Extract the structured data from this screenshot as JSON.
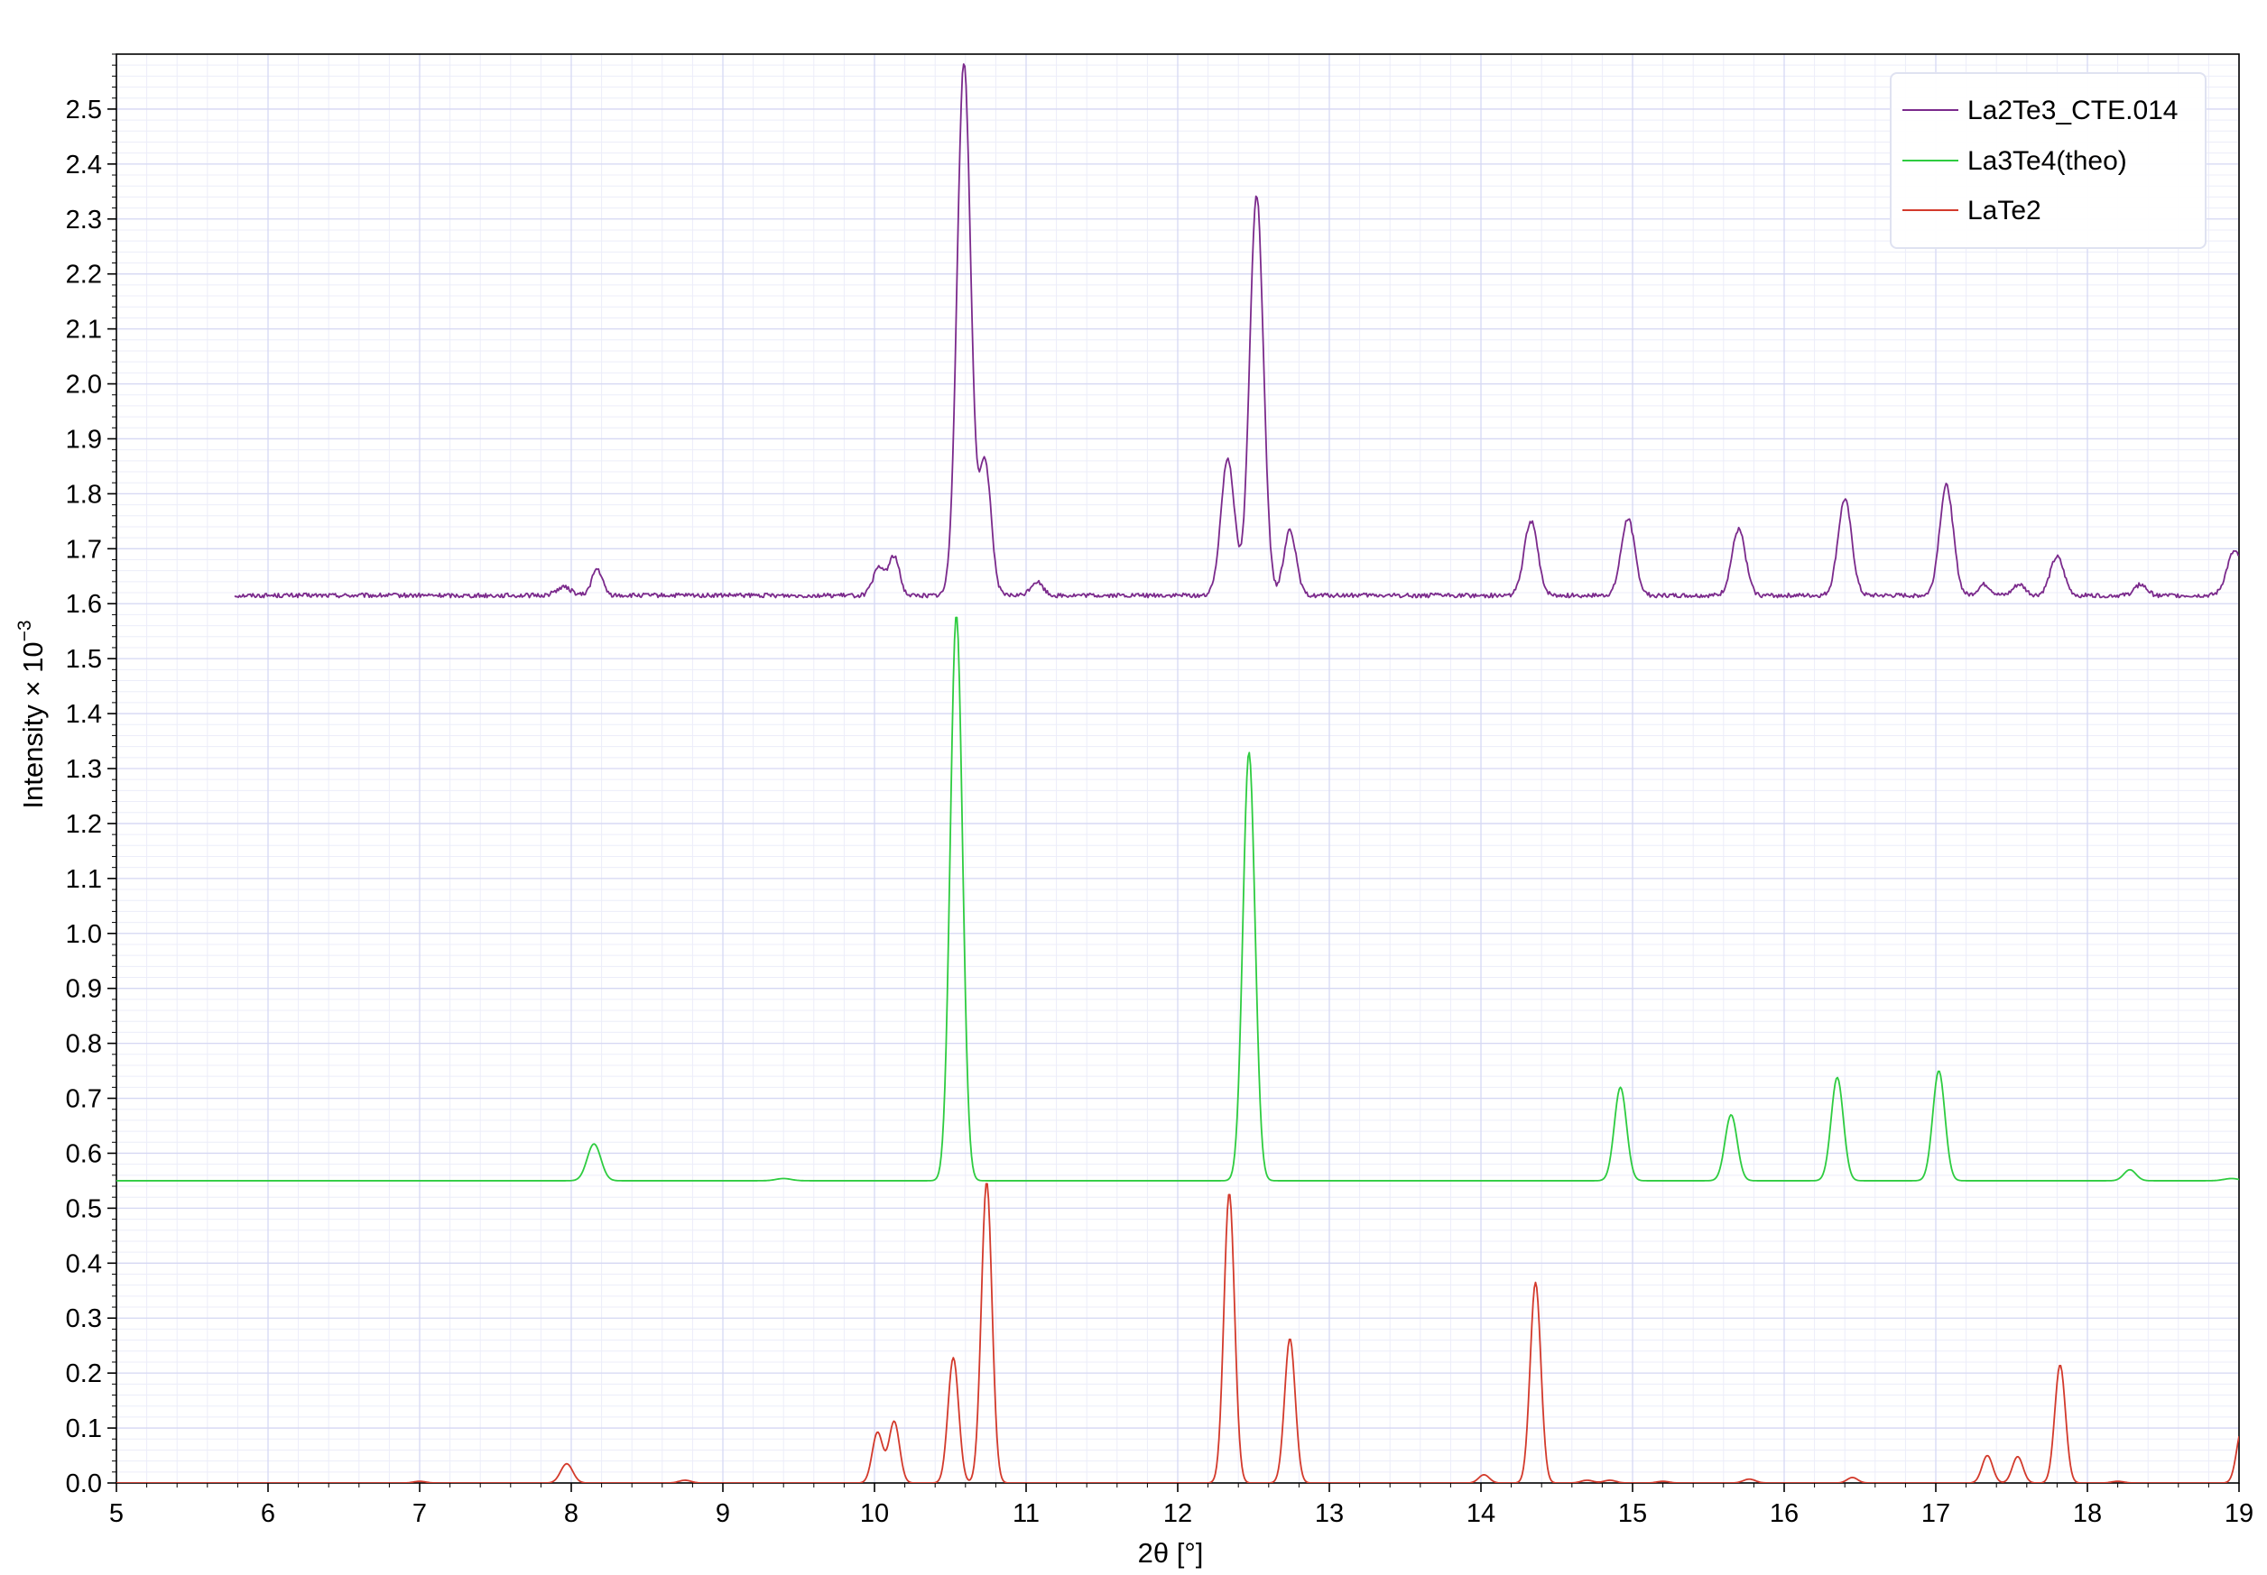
{
  "chart_data": {
    "type": "line",
    "title": "",
    "xlabel": "2θ [°]",
    "ylabel": "Intensity × 10",
    "ylabel_exponent": "−3",
    "xlim": [
      5,
      19
    ],
    "ylim": [
      0,
      2.6
    ],
    "xticks": [
      "5",
      "6",
      "7",
      "8",
      "9",
      "10",
      "11",
      "12",
      "13",
      "14",
      "15",
      "16",
      "17",
      "18",
      "19"
    ],
    "yticks": [
      "0.0",
      "0.1",
      "0.2",
      "0.3",
      "0.4",
      "0.5",
      "0.6",
      "0.7",
      "0.8",
      "0.9",
      "1.0",
      "1.1",
      "1.2",
      "1.3",
      "1.4",
      "1.5",
      "1.6",
      "1.7",
      "1.8",
      "1.9",
      "2.0",
      "2.1",
      "2.2",
      "2.3",
      "2.4",
      "2.5"
    ],
    "grid": true,
    "legend_position": "top-right",
    "series": [
      {
        "name": "La2Te3_CTE.014",
        "color": "#7b2a8c",
        "x_range": [
          5.78,
          19.0
        ],
        "baseline": 1.615,
        "noise": 0.004,
        "peaks": [
          {
            "x": 7.95,
            "height": 0.015,
            "width": 0.05
          },
          {
            "x": 8.17,
            "height": 0.048,
            "width": 0.035
          },
          {
            "x": 10.03,
            "height": 0.05,
            "width": 0.04
          },
          {
            "x": 10.13,
            "height": 0.07,
            "width": 0.035
          },
          {
            "x": 10.59,
            "height": 0.97,
            "width": 0.045
          },
          {
            "x": 10.73,
            "height": 0.24,
            "width": 0.04
          },
          {
            "x": 11.07,
            "height": 0.025,
            "width": 0.04
          },
          {
            "x": 12.33,
            "height": 0.25,
            "width": 0.045
          },
          {
            "x": 12.52,
            "height": 0.73,
            "width": 0.045
          },
          {
            "x": 12.74,
            "height": 0.12,
            "width": 0.04
          },
          {
            "x": 14.33,
            "height": 0.135,
            "width": 0.045
          },
          {
            "x": 14.97,
            "height": 0.14,
            "width": 0.045
          },
          {
            "x": 15.7,
            "height": 0.12,
            "width": 0.045
          },
          {
            "x": 16.4,
            "height": 0.175,
            "width": 0.045
          },
          {
            "x": 17.07,
            "height": 0.2,
            "width": 0.045
          },
          {
            "x": 17.32,
            "height": 0.02,
            "width": 0.04
          },
          {
            "x": 17.55,
            "height": 0.02,
            "width": 0.04
          },
          {
            "x": 17.8,
            "height": 0.07,
            "width": 0.045
          },
          {
            "x": 18.35,
            "height": 0.02,
            "width": 0.04
          },
          {
            "x": 18.97,
            "height": 0.08,
            "width": 0.05
          }
        ]
      },
      {
        "name": "La3Te4(theo)",
        "color": "#2ecc40",
        "x_range": [
          5.0,
          19.0
        ],
        "baseline": 0.55,
        "noise": 0,
        "peaks": [
          {
            "x": 8.15,
            "height": 0.067,
            "width": 0.045
          },
          {
            "x": 9.4,
            "height": 0.004,
            "width": 0.05
          },
          {
            "x": 10.54,
            "height": 1.03,
            "width": 0.04
          },
          {
            "x": 12.47,
            "height": 0.78,
            "width": 0.04
          },
          {
            "x": 14.92,
            "height": 0.17,
            "width": 0.04
          },
          {
            "x": 15.65,
            "height": 0.12,
            "width": 0.04
          },
          {
            "x": 16.35,
            "height": 0.188,
            "width": 0.04
          },
          {
            "x": 17.02,
            "height": 0.2,
            "width": 0.04
          },
          {
            "x": 18.28,
            "height": 0.02,
            "width": 0.04
          },
          {
            "x": 18.95,
            "height": 0.004,
            "width": 0.05
          }
        ]
      },
      {
        "name": "LaTe2",
        "color": "#d33a2c",
        "x_range": [
          5.0,
          19.0
        ],
        "baseline": 0.0,
        "noise": 0,
        "peaks": [
          {
            "x": 7.0,
            "height": 0.003,
            "width": 0.04
          },
          {
            "x": 7.97,
            "height": 0.035,
            "width": 0.04
          },
          {
            "x": 8.75,
            "height": 0.005,
            "width": 0.04
          },
          {
            "x": 10.02,
            "height": 0.092,
            "width": 0.035
          },
          {
            "x": 10.13,
            "height": 0.112,
            "width": 0.035
          },
          {
            "x": 10.52,
            "height": 0.228,
            "width": 0.035
          },
          {
            "x": 10.74,
            "height": 0.548,
            "width": 0.035
          },
          {
            "x": 12.34,
            "height": 0.528,
            "width": 0.035
          },
          {
            "x": 12.74,
            "height": 0.263,
            "width": 0.035
          },
          {
            "x": 14.02,
            "height": 0.015,
            "width": 0.035
          },
          {
            "x": 14.36,
            "height": 0.365,
            "width": 0.035
          },
          {
            "x": 14.7,
            "height": 0.005,
            "width": 0.04
          },
          {
            "x": 14.85,
            "height": 0.005,
            "width": 0.04
          },
          {
            "x": 15.2,
            "height": 0.003,
            "width": 0.04
          },
          {
            "x": 15.77,
            "height": 0.007,
            "width": 0.04
          },
          {
            "x": 16.45,
            "height": 0.01,
            "width": 0.035
          },
          {
            "x": 17.34,
            "height": 0.05,
            "width": 0.035
          },
          {
            "x": 17.54,
            "height": 0.048,
            "width": 0.035
          },
          {
            "x": 17.82,
            "height": 0.215,
            "width": 0.035
          },
          {
            "x": 18.2,
            "height": 0.003,
            "width": 0.04
          },
          {
            "x": 19.02,
            "height": 0.1,
            "width": 0.035
          }
        ]
      }
    ]
  }
}
